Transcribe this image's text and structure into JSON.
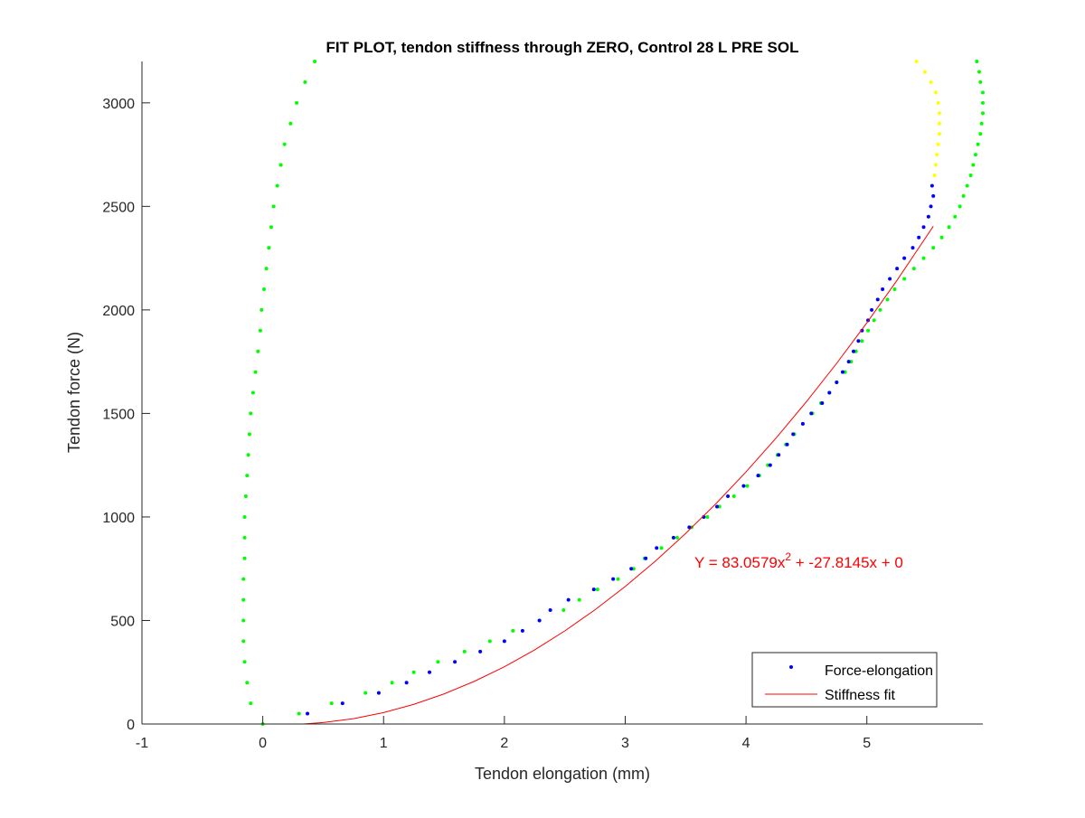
{
  "chart_data": {
    "type": "scatter",
    "title": "FIT PLOT, tendon stiffness through ZERO, Control 28 L PRE SOL",
    "x_label": "Tendon elongation (mm)",
    "y_label": "Tendon force (N)",
    "annotation": {
      "text": "Y = 83.0579x",
      "superscript": "2",
      "text_after": " + -27.8145x + 0",
      "color": "#ff0000"
    },
    "xlim": [
      -1,
      5.96
    ],
    "xticks": [
      -1,
      0,
      1,
      2,
      3,
      4,
      5
    ],
    "ylim": [
      0,
      3200
    ],
    "yticks": [
      0,
      500,
      1000,
      1500,
      2000,
      2500,
      3000
    ],
    "grid": false,
    "legend": "southeast",
    "series": [
      {
        "color": "#00ff00",
        "mode": "markers",
        "x": [
          0.0,
          -0.1,
          -0.13,
          -0.15,
          -0.16,
          -0.16,
          -0.16,
          -0.16,
          -0.15,
          -0.15,
          -0.15,
          -0.14,
          -0.13,
          -0.12,
          -0.11,
          -0.1,
          -0.08,
          -0.06,
          -0.04,
          -0.02,
          -0.01,
          0.01,
          0.03,
          0.05,
          0.07,
          0.09,
          0.12,
          0.15,
          0.18,
          0.23,
          0.28,
          0.35,
          0.43
        ],
        "values": [
          0,
          100,
          200,
          300,
          400,
          500,
          600,
          700,
          800,
          900,
          1000,
          1100,
          1200,
          1300,
          1400,
          1500,
          1600,
          1700,
          1800,
          1900,
          2000,
          2100,
          2200,
          2300,
          2400,
          2500,
          2600,
          2700,
          2800,
          2900,
          3000,
          3100,
          3200
        ]
      },
      {
        "color": "#00ff00",
        "mode": "markers",
        "x": [
          0.3,
          0.57,
          0.85,
          1.07,
          1.25,
          1.45,
          1.67,
          1.88,
          2.07,
          2.29,
          2.49,
          2.62,
          2.77,
          2.94,
          3.07,
          3.16,
          3.3,
          3.43,
          3.55,
          3.68,
          3.78,
          3.9,
          4.01,
          4.11,
          4.18,
          4.26,
          4.33,
          4.4,
          4.47,
          4.55,
          4.62,
          4.69,
          4.75,
          4.82,
          4.87,
          4.91,
          4.96,
          5.01,
          5.06,
          5.11,
          5.17,
          5.23,
          5.31,
          5.39,
          5.47,
          5.55,
          5.62,
          5.68,
          5.73,
          5.77,
          5.8,
          5.83,
          5.86,
          5.88,
          5.9,
          5.92,
          5.94,
          5.95,
          5.96,
          5.96,
          5.96,
          5.94,
          5.93,
          5.91
        ],
        "values": [
          50,
          100,
          150,
          200,
          250,
          300,
          350,
          400,
          450,
          500,
          550,
          600,
          650,
          700,
          750,
          800,
          850,
          900,
          950,
          1000,
          1050,
          1100,
          1150,
          1200,
          1250,
          1300,
          1350,
          1400,
          1450,
          1500,
          1550,
          1600,
          1650,
          1700,
          1750,
          1800,
          1850,
          1900,
          1950,
          2000,
          2050,
          2100,
          2150,
          2200,
          2250,
          2300,
          2350,
          2400,
          2450,
          2500,
          2550,
          2600,
          2650,
          2700,
          2750,
          2800,
          2850,
          2900,
          2950,
          3000,
          3050,
          3100,
          3150,
          3200
        ]
      },
      {
        "color": "#ffff00",
        "mode": "markers",
        "x": [
          5.56,
          5.57,
          5.58,
          5.59,
          5.6,
          5.6,
          5.6,
          5.59,
          5.57,
          5.53,
          5.48,
          5.41
        ],
        "values": [
          2650,
          2700,
          2750,
          2800,
          2850,
          2900,
          2950,
          3000,
          3050,
          3100,
          3150,
          3200
        ]
      },
      {
        "name": "Force-elongation",
        "color": "#0000ff",
        "mode": "markers",
        "x": [
          0.37,
          0.66,
          0.96,
          1.19,
          1.38,
          1.59,
          1.8,
          2.0,
          2.15,
          2.29,
          2.38,
          2.53,
          2.74,
          2.9,
          3.05,
          3.17,
          3.26,
          3.4,
          3.53,
          3.65,
          3.76,
          3.85,
          3.98,
          4.1,
          4.2,
          4.27,
          4.34,
          4.39,
          4.47,
          4.54,
          4.63,
          4.69,
          4.75,
          4.8,
          4.85,
          4.89,
          4.93,
          4.96,
          5.01,
          5.04,
          5.09,
          5.13,
          5.19,
          5.25,
          5.31,
          5.38,
          5.43,
          5.47,
          5.51,
          5.53,
          5.55,
          5.54
        ],
        "values": [
          50,
          100,
          150,
          200,
          250,
          300,
          350,
          400,
          450,
          500,
          550,
          600,
          650,
          700,
          750,
          800,
          850,
          900,
          950,
          1000,
          1050,
          1100,
          1150,
          1200,
          1250,
          1300,
          1350,
          1400,
          1450,
          1500,
          1550,
          1600,
          1650,
          1700,
          1750,
          1800,
          1850,
          1900,
          1950,
          2000,
          2050,
          2100,
          2150,
          2200,
          2250,
          2300,
          2350,
          2400,
          2450,
          2500,
          2550,
          2600
        ]
      },
      {
        "name": "Stiffness fit",
        "color": "#ff0000",
        "mode": "line",
        "x": [
          0.335,
          0.5,
          0.75,
          1,
          1.25,
          1.5,
          1.75,
          2,
          2.25,
          2.5,
          2.75,
          3,
          3.25,
          3.5,
          3.75,
          4,
          4.25,
          4.5,
          4.75,
          5,
          5.25,
          5.55
        ],
        "values": [
          0,
          6.86,
          25.86,
          55.24,
          95.01,
          145.16,
          205.7,
          276.6,
          357.9,
          449.6,
          551.6,
          664.1,
          786.9,
          920.1,
          1063.6,
          1217.7,
          1382.0,
          1556.8,
          1741.9,
          1937.4,
          2143.3,
          2404.0
        ]
      }
    ]
  }
}
